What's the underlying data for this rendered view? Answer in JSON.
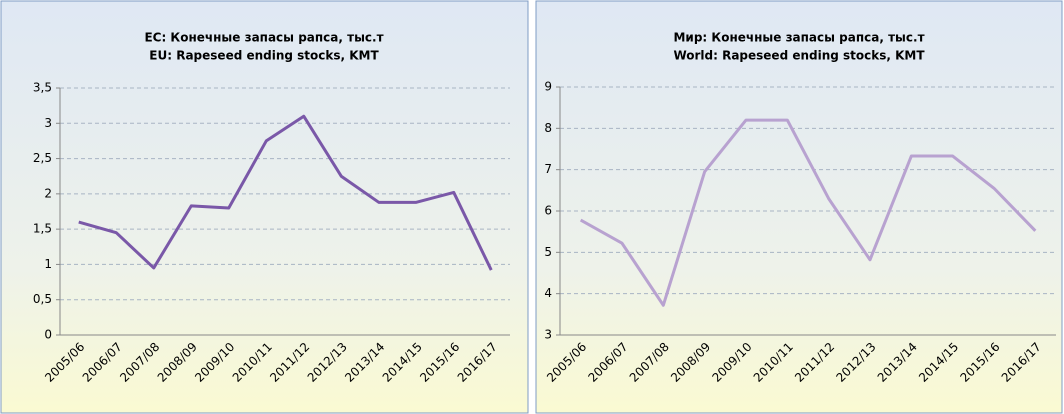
{
  "chart_data": [
    {
      "type": "line",
      "title": "ЕС: Конечные запасы рапса, тыс.т",
      "subtitle": "EU: Rapeseed ending stocks, KMT",
      "categories": [
        "2005/06",
        "2006/07",
        "2007/08",
        "2008/09",
        "2009/10",
        "2010/11",
        "2011/12",
        "2012/13",
        "2013/14",
        "2014/15",
        "2015/16",
        "2016/17"
      ],
      "values": [
        1.6,
        1.45,
        0.95,
        1.83,
        1.8,
        2.75,
        3.1,
        2.25,
        1.88,
        1.88,
        2.02,
        0.92
      ],
      "color": "#7a58a8",
      "ylim": [
        0,
        3.5
      ],
      "yticks": [
        0,
        {
          "value": 0.5,
          "label": "0,5"
        },
        1,
        {
          "value": 1.5,
          "label": "1,5"
        },
        2,
        {
          "value": 2.5,
          "label": "2,5"
        },
        3,
        {
          "value": 3.5,
          "label": "3,5"
        }
      ],
      "grid": true
    },
    {
      "type": "line",
      "title": "Мир: Конечные запасы рапса, тыс.т",
      "subtitle": "World: Rapeseed ending stocks, KMT",
      "categories": [
        "2005/06",
        "2006/07",
        "2007/08",
        "2008/09",
        "2009/10",
        "2010/11",
        "2011/12",
        "2012/13",
        "2013/14",
        "2014/15",
        "2015/16",
        "2016/17"
      ],
      "values": [
        5.78,
        5.22,
        3.72,
        6.95,
        8.2,
        8.2,
        6.3,
        4.82,
        7.33,
        7.33,
        6.55,
        5.52
      ],
      "color": "#b8a2d0",
      "ylim": [
        3,
        9
      ],
      "yticks": [
        3,
        4,
        5,
        6,
        7,
        8,
        9
      ],
      "grid": true
    }
  ]
}
